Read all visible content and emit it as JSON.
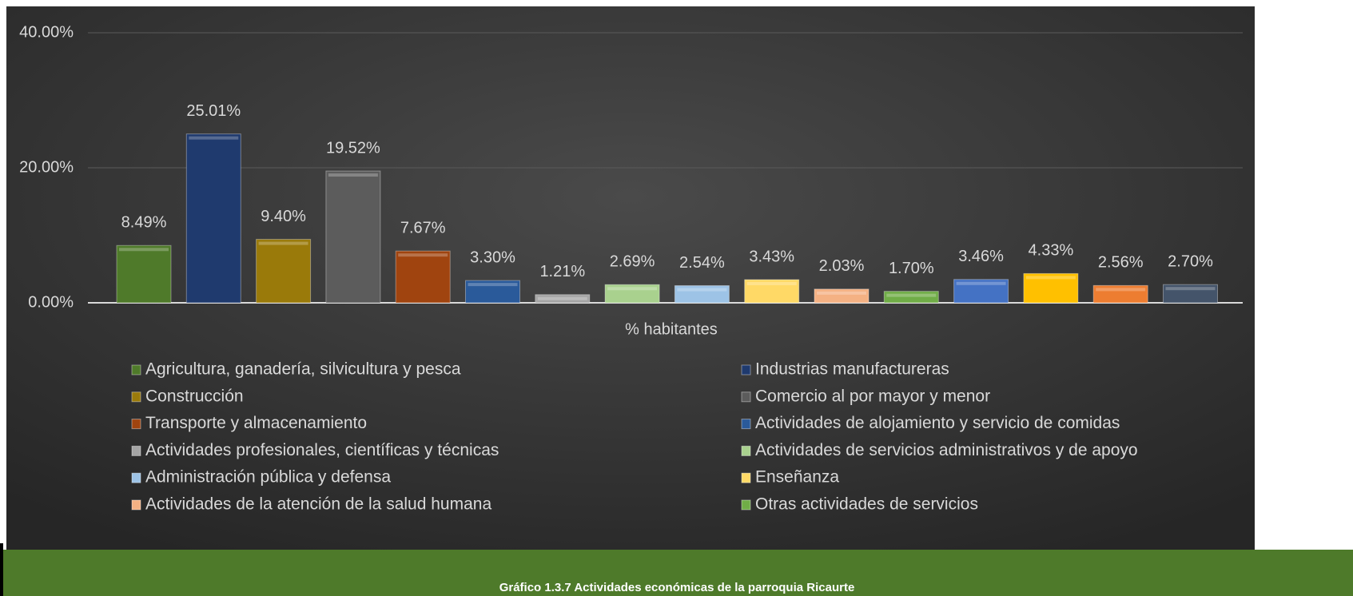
{
  "chart_data": {
    "type": "bar",
    "categories": [
      "% habitantes"
    ],
    "caption": "Gráfico 1.3.7 Actividades económicas de la parroquia Ricaurte",
    "ylim": [
      0,
      40
    ],
    "yticks": [
      {
        "value": 0,
        "label": "0.00%"
      },
      {
        "value": 20,
        "label": "20.00%"
      },
      {
        "value": 40,
        "label": "40.00%"
      }
    ],
    "grid": true,
    "legend": "bottom",
    "series": [
      {
        "name": "Agricultura, ganadería, silvicultura y pesca",
        "color": "#4f7a2a",
        "values": [
          8.49
        ],
        "value_labels": [
          "8.49%"
        ]
      },
      {
        "name": "Industrias manufactureras",
        "color": "#1f3a6e",
        "values": [
          25.01
        ],
        "value_labels": [
          "25.01%"
        ]
      },
      {
        "name": "Construcción",
        "color": "#9a7a0a",
        "values": [
          9.4
        ],
        "value_labels": [
          "9.40%"
        ]
      },
      {
        "name": "Comercio al por mayor y menor",
        "color": "#5c5c5c",
        "values": [
          19.52
        ],
        "value_labels": [
          "19.52%"
        ]
      },
      {
        "name": "Transporte y almacenamiento",
        "color": "#a0440f",
        "values": [
          7.67
        ],
        "value_labels": [
          "7.67%"
        ]
      },
      {
        "name": "Actividades de alojamiento y servicio de comidas",
        "color": "#2a5a9a",
        "values": [
          3.3
        ],
        "value_labels": [
          "3.30%"
        ]
      },
      {
        "name": "Actividades profesionales, científicas y técnicas",
        "color": "#a5a5a5",
        "values": [
          1.21
        ],
        "value_labels": [
          "1.21%"
        ]
      },
      {
        "name": "Actividades de servicios administrativos y de apoyo",
        "color": "#a9d18e",
        "values": [
          2.69
        ],
        "value_labels": [
          "2.69%"
        ]
      },
      {
        "name": "Administración pública y defensa",
        "color": "#9dc3e6",
        "values": [
          2.54
        ],
        "value_labels": [
          "2.54%"
        ]
      },
      {
        "name": "Enseñanza",
        "color": "#ffd966",
        "values": [
          3.43
        ],
        "value_labels": [
          "3.43%"
        ]
      },
      {
        "name": "Actividades de la atención de la salud humana",
        "color": "#f4b183",
        "values": [
          2.03
        ],
        "value_labels": [
          "2.03%"
        ]
      },
      {
        "name": "Otras actividades de servicios",
        "color": "#70ad47",
        "values": [
          1.7
        ],
        "value_labels": [
          "1.70%"
        ]
      },
      {
        "name": null,
        "color": "#4472c4",
        "values": [
          3.46
        ],
        "value_labels": [
          "3.46%"
        ]
      },
      {
        "name": null,
        "color": "#ffc000",
        "values": [
          4.33
        ],
        "value_labels": [
          "4.33%"
        ]
      },
      {
        "name": null,
        "color": "#ed7d31",
        "values": [
          2.56
        ],
        "value_labels": [
          "2.56%"
        ]
      },
      {
        "name": null,
        "color": "#44546a",
        "values": [
          2.7
        ],
        "value_labels": [
          "2.70%"
        ]
      }
    ]
  }
}
